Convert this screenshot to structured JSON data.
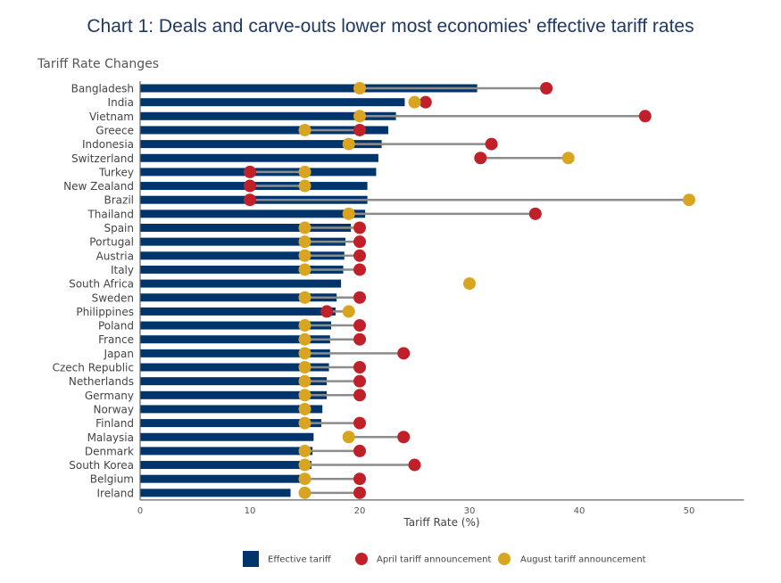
{
  "colors": {
    "effective": "#00356b",
    "april": "#c0202a",
    "august": "#d9a521",
    "connector": "#8c8c8c",
    "title": "#1f3864"
  },
  "chart_data": {
    "type": "bar",
    "subtype": "horizontal bar with dumbbell markers",
    "title": "Chart 1: Deals and carve-outs lower most economies' effective tariff rates",
    "subtitle": "Tariff Rate Changes",
    "xlabel": "Tariff Rate (%)",
    "ylabel": "",
    "xlim": [
      0,
      55
    ],
    "xticks": [
      0,
      10,
      20,
      30,
      40,
      50
    ],
    "grid": false,
    "legend_position": "bottom",
    "categories": [
      "Bangladesh",
      "India",
      "Vietnam",
      "Greece",
      "Indonesia",
      "Switzerland",
      "Turkey",
      "New Zealand",
      "Brazil",
      "Thailand",
      "Spain",
      "Portugal",
      "Austria",
      "Italy",
      "South Africa",
      "Sweden",
      "Philippines",
      "Poland",
      "France",
      "Japan",
      "Czech Republic",
      "Netherlands",
      "Germany",
      "Norway",
      "Finland",
      "Malaysia",
      "Denmark",
      "South Korea",
      "Belgium",
      "Ireland"
    ],
    "series": [
      {
        "name": "Effective tariff",
        "kind": "bar",
        "values": [
          30.7,
          24.1,
          23.3,
          22.6,
          22.0,
          21.7,
          21.5,
          20.7,
          20.7,
          20.5,
          19.2,
          18.7,
          18.6,
          18.5,
          18.3,
          17.9,
          17.8,
          17.4,
          17.3,
          17.3,
          17.2,
          17.0,
          17.0,
          16.6,
          16.5,
          15.8,
          15.7,
          15.6,
          15.3,
          13.7
        ]
      },
      {
        "name": "April tariff announcement",
        "kind": "dot",
        "values": [
          37,
          26,
          46,
          20,
          32,
          31,
          10,
          10,
          10,
          36,
          20,
          20,
          20,
          20,
          null,
          20,
          17,
          20,
          20,
          24,
          20,
          20,
          20,
          null,
          20,
          24,
          20,
          25,
          20,
          20
        ]
      },
      {
        "name": "August tariff announcement",
        "kind": "dot",
        "values": [
          20,
          25,
          20,
          15,
          19,
          39,
          15,
          15,
          50,
          19,
          15,
          15,
          15,
          15,
          30,
          15,
          19,
          15,
          15,
          15,
          15,
          15,
          15,
          15,
          15,
          19,
          15,
          15,
          15,
          15
        ]
      }
    ]
  }
}
